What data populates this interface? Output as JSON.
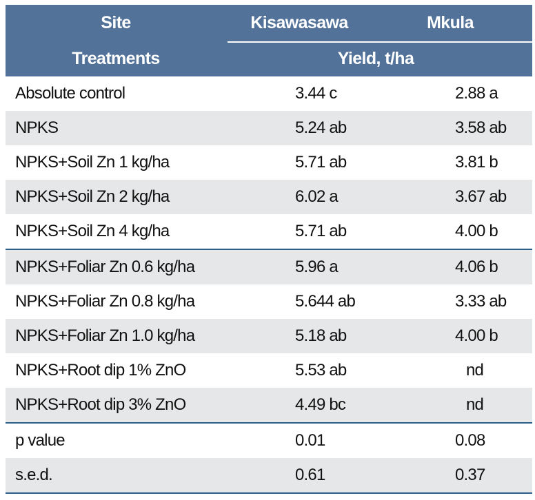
{
  "header": {
    "site_label": "Site",
    "site1": "Kisawasawa",
    "site2": "Mkula",
    "treatments_label": "Treatments",
    "yield_label": "Yield, t/ha"
  },
  "rows": [
    {
      "treatment": "Absolute control",
      "kisawasawa": "3.44 c",
      "mkula": "2.88 a"
    },
    {
      "treatment": "NPKS",
      "kisawasawa": "5.24 ab",
      "mkula": "3.58 ab"
    },
    {
      "treatment": "NPKS+Soil Zn 1 kg/ha",
      "kisawasawa": "5.71 ab",
      "mkula": "3.81 b"
    },
    {
      "treatment": "NPKS+Soil Zn 2 kg/ha",
      "kisawasawa": "6.02 a",
      "mkula": "3.67 ab"
    },
    {
      "treatment": "NPKS+Soil Zn 4 kg/ha",
      "kisawasawa": "5.71 ab",
      "mkula": "4.00 b"
    },
    {
      "treatment": "NPKS+Foliar Zn 0.6 kg/ha",
      "kisawasawa": "5.96 a",
      "mkula": "4.06 b"
    },
    {
      "treatment": "NPKS+Foliar Zn 0.8 kg/ha",
      "kisawasawa": "5.644 ab",
      "mkula": "3.33 ab"
    },
    {
      "treatment": "NPKS+Foliar Zn 1.0 kg/ha",
      "kisawasawa": "5.18 ab",
      "mkula": "4.00 b"
    },
    {
      "treatment": "NPKS+Root dip 1% ZnO",
      "kisawasawa": "5.53 ab",
      "mkula": "nd"
    },
    {
      "treatment": "NPKS+Root dip 3% ZnO",
      "kisawasawa": "4.49 bc",
      "mkula": "nd"
    },
    {
      "treatment": "p value",
      "kisawasawa": "0.01",
      "mkula": "0.08"
    },
    {
      "treatment": "s.e.d.",
      "kisawasawa": "0.61",
      "mkula": "0.37"
    }
  ],
  "colors": {
    "header_bg": "#52729a",
    "stripe": "#e6e7e8",
    "rule": "#2d5f8b"
  }
}
